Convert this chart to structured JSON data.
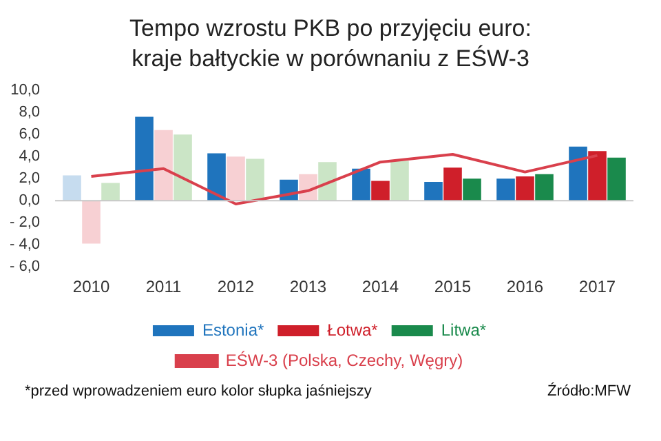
{
  "chart_data": {
    "type": "bar",
    "title": "Tempo wzrostu PKB po przyjęciu euro: kraje bałtyckie w porównaniu z EŚW-3",
    "categories": [
      "2010",
      "2011",
      "2012",
      "2013",
      "2014",
      "2015",
      "2016",
      "2017"
    ],
    "series": [
      {
        "name": "Estonia*",
        "color": "#1f74bd",
        "colors": [
          "#c6dcef",
          "#1f74bd",
          "#1f74bd",
          "#1f74bd",
          "#1f74bd",
          "#1f74bd",
          "#1f74bd",
          "#1f74bd"
        ],
        "values": [
          2.3,
          7.6,
          4.3,
          1.9,
          2.9,
          1.7,
          2.0,
          4.9
        ]
      },
      {
        "name": "Łotwa*",
        "color": "#cf1f2a",
        "colors": [
          "#f7d0d3",
          "#f7d0d3",
          "#f7d0d3",
          "#f7d0d3",
          "#cf1f2a",
          "#cf1f2a",
          "#cf1f2a",
          "#cf1f2a"
        ],
        "values": [
          -3.9,
          6.4,
          4.0,
          2.4,
          1.8,
          3.0,
          2.2,
          4.5
        ]
      },
      {
        "name": "Litwa*",
        "color": "#1a8a4c",
        "colors": [
          "#cbe5c6",
          "#cbe5c6",
          "#cbe5c6",
          "#cbe5c6",
          "#cbe5c6",
          "#1a8a4c",
          "#1a8a4c",
          "#1a8a4c"
        ],
        "values": [
          1.6,
          6.0,
          3.8,
          3.5,
          3.6,
          2.0,
          2.4,
          3.9
        ]
      },
      {
        "name": "EŚW-3 (Polska, Czechy, Węgry)",
        "type": "line",
        "color": "#d9404c",
        "values": [
          2.2,
          2.9,
          -0.3,
          0.9,
          3.5,
          4.2,
          2.6,
          4.1
        ]
      }
    ],
    "ylim": [
      -6,
      10
    ],
    "yticks": [
      {
        "value": -6,
        "label": "- 6,0"
      },
      {
        "value": -4,
        "label": "- 4,0"
      },
      {
        "value": -2,
        "label": "- 2,0"
      },
      {
        "value": 0,
        "label": "0,0"
      },
      {
        "value": 2,
        "label": "2,0"
      },
      {
        "value": 4,
        "label": "4,0"
      },
      {
        "value": 6,
        "label": "6,0"
      },
      {
        "value": 8,
        "label": "8,0"
      },
      {
        "value": 10,
        "label": "10,0"
      }
    ],
    "legend": "bottom",
    "marker": "none",
    "annotations": [
      "*przed wprowadzeniem euro kolor słupka jaśniejszy",
      "Źródło:MFW"
    ]
  }
}
